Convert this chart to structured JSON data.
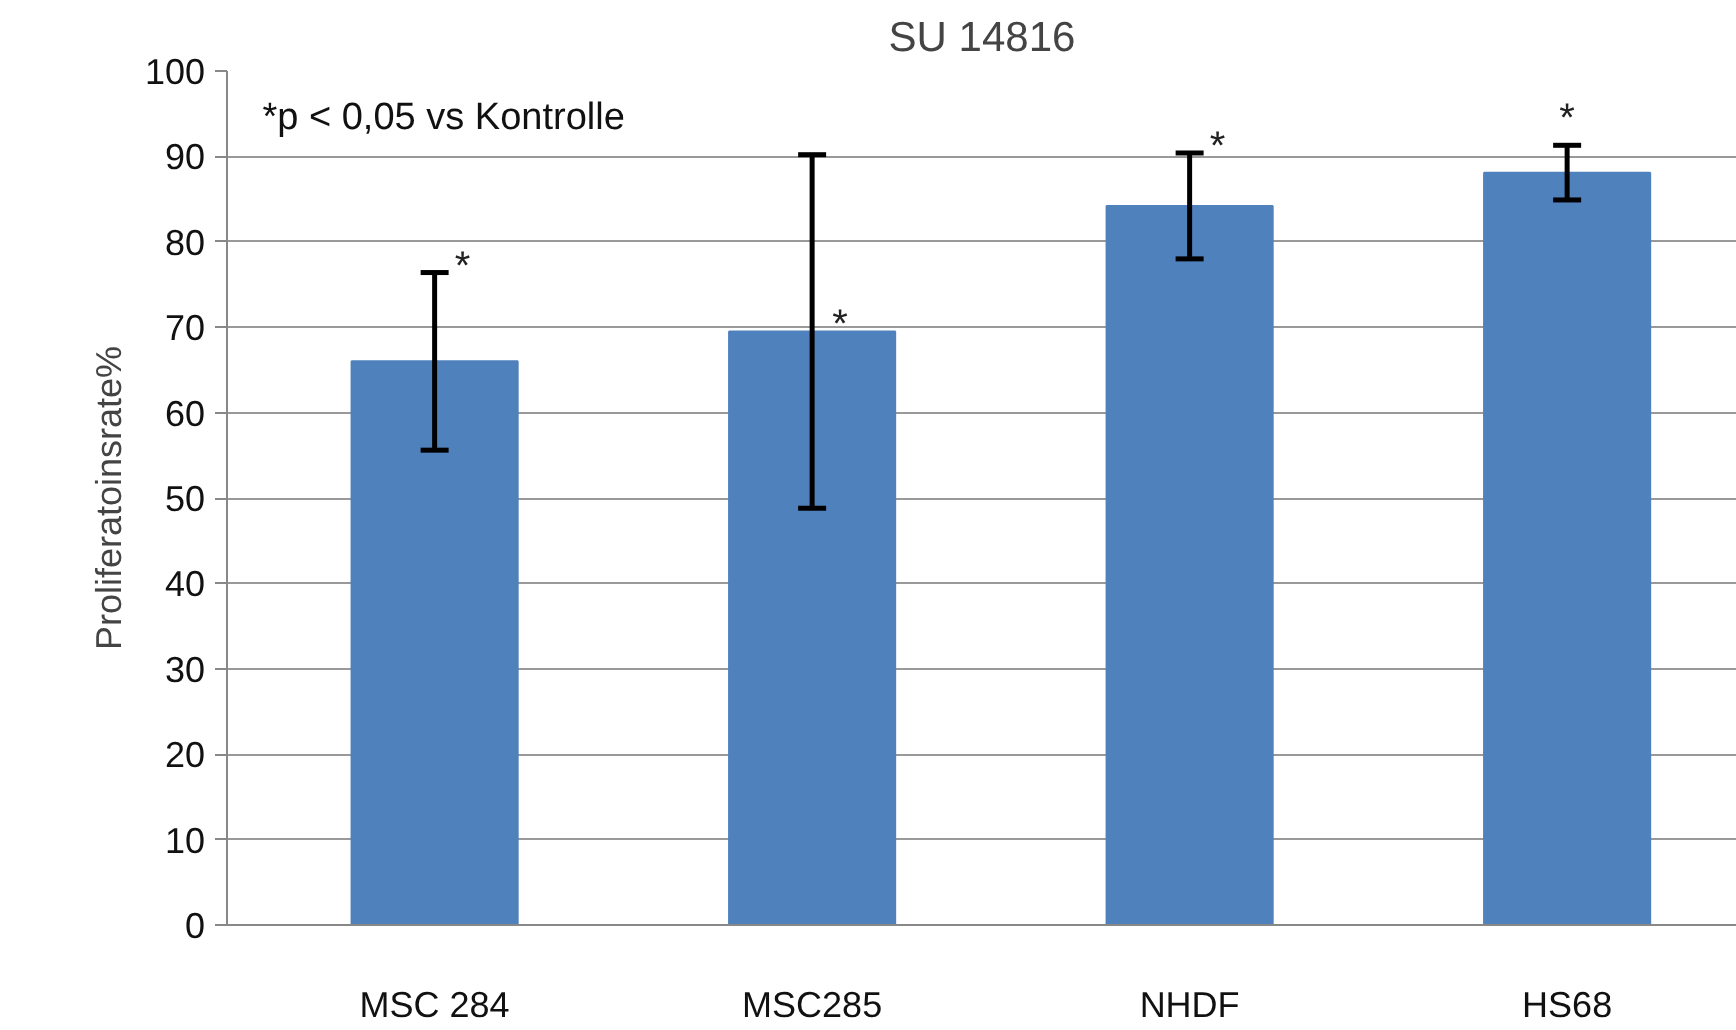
{
  "chart_data": {
    "type": "bar",
    "title": "SU 14816",
    "ylabel": "Proliferatoinsrate%",
    "categories": [
      "MSC 284",
      "MSC285",
      "NHDF",
      "HS68"
    ],
    "values": [
      66.0,
      69.5,
      84.2,
      88.1
    ],
    "errors": [
      10.4,
      20.7,
      6.2,
      3.2
    ],
    "color": "#4f81bd",
    "ylim": [
      0,
      100
    ],
    "yticks": [
      0,
      10,
      20,
      30,
      40,
      50,
      60,
      70,
      80,
      90,
      100
    ],
    "grid": "y",
    "annotations": [
      "*p < 0,05 vs Kontrolle",
      {
        "text": "*",
        "x": "MSC 284",
        "y": 76.4
      },
      {
        "text": "*",
        "x": "MSC285",
        "y": 69.5
      },
      {
        "text": "*",
        "x": "NHDF",
        "y": 90.4
      },
      {
        "text": "*",
        "x": "HS68",
        "y": 91.3
      }
    ]
  }
}
